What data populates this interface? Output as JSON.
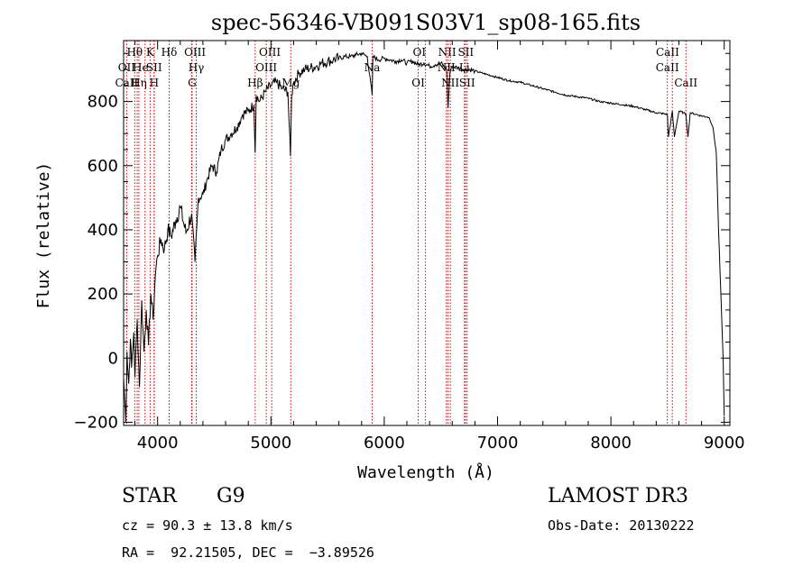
{
  "chart_data": {
    "type": "line",
    "title": "spec-56346-VB091S03V1_sp08-165.fits",
    "xlabel": "Wavelength (Å)",
    "ylabel": "Flux (relative)",
    "xlim": [
      3700,
      9050
    ],
    "ylim": [
      -210,
      990
    ],
    "xticks": [
      4000,
      5000,
      6000,
      7000,
      8000,
      9000
    ],
    "xtick_labels": [
      "4000",
      "5000",
      "6000",
      "7000",
      "8000",
      "9000"
    ],
    "yticks": [
      -200,
      0,
      200,
      400,
      600,
      800
    ],
    "ytick_labels": [
      "−200",
      "0",
      "200",
      "400",
      "600",
      "800"
    ],
    "series": [
      {
        "name": "flux",
        "x": [
          3700,
          3720,
          3730,
          3745,
          3760,
          3770,
          3790,
          3800,
          3820,
          3840,
          3860,
          3880,
          3900,
          3920,
          3940,
          3960,
          3980,
          4000,
          4030,
          4060,
          4090,
          4120,
          4160,
          4200,
          4250,
          4300,
          4330,
          4360,
          4400,
          4440,
          4480,
          4520,
          4560,
          4600,
          4650,
          4700,
          4750,
          4800,
          4850,
          4861,
          4870,
          4900,
          4950,
          5000,
          5050,
          5100,
          5150,
          5172,
          5183,
          5200,
          5250,
          5300,
          5350,
          5400,
          5450,
          5500,
          5550,
          5600,
          5650,
          5700,
          5750,
          5800,
          5850,
          5893,
          5900,
          5950,
          6000,
          6050,
          6100,
          6150,
          6200,
          6250,
          6300,
          6350,
          6400,
          6450,
          6500,
          6550,
          6563,
          6580,
          6600,
          6650,
          6700,
          6750,
          6800,
          6850,
          6900,
          6950,
          7000,
          7100,
          7200,
          7300,
          7400,
          7500,
          7600,
          7700,
          7800,
          7900,
          8000,
          8100,
          8200,
          8300,
          8400,
          8498,
          8508,
          8542,
          8560,
          8600,
          8640,
          8662,
          8680,
          8700,
          8750,
          8800,
          8850,
          8870,
          8900,
          8930,
          8950,
          8970,
          8990,
          9000
        ],
        "y": [
          -60,
          -200,
          20,
          -80,
          60,
          -30,
          80,
          -60,
          120,
          -90,
          180,
          20,
          150,
          40,
          200,
          120,
          260,
          320,
          370,
          340,
          400,
          380,
          430,
          470,
          390,
          450,
          300,
          500,
          510,
          560,
          600,
          580,
          650,
          680,
          700,
          720,
          760,
          770,
          790,
          640,
          820,
          800,
          830,
          850,
          860,
          840,
          830,
          630,
          820,
          860,
          890,
          900,
          905,
          910,
          920,
          925,
          930,
          935,
          940,
          940,
          945,
          950,
          940,
          820,
          940,
          930,
          935,
          930,
          925,
          930,
          920,
          925,
          915,
          920,
          910,
          915,
          920,
          900,
          780,
          890,
          910,
          905,
          900,
          900,
          895,
          890,
          885,
          880,
          875,
          865,
          860,
          850,
          840,
          830,
          820,
          815,
          810,
          800,
          795,
          790,
          785,
          775,
          765,
          760,
          690,
          770,
          690,
          770,
          765,
          760,
          690,
          765,
          760,
          755,
          752,
          748,
          720,
          640,
          400,
          200,
          0,
          -180
        ]
      }
    ],
    "lines": [
      {
        "name": "OII",
        "wavelength": 3727
      },
      {
        "name": "Hθ",
        "wavelength": 3798
      },
      {
        "name": "CaII",
        "wavelength": 3820
      },
      {
        "name": "Hη",
        "wavelength": 3835
      },
      {
        "name": "He",
        "wavelength": 3889
      },
      {
        "name": "K",
        "wavelength": 3934
      },
      {
        "name": "SII",
        "wavelength": 3969
      },
      {
        "name": "H",
        "wavelength": 3970
      },
      {
        "name": "Hδ",
        "wavelength": 4102
      },
      {
        "name": "OIII",
        "wavelength": 4300
      },
      {
        "name": "Hγ",
        "wavelength": 4341
      },
      {
        "name": "G",
        "wavelength": 4304
      },
      {
        "name": "Hβ",
        "wavelength": 4861
      },
      {
        "name": "OIII",
        "wavelength": 4959
      },
      {
        "name": "OIII",
        "wavelength": 5007
      },
      {
        "name": "Mg",
        "wavelength": 5175
      },
      {
        "name": "Na",
        "wavelength": 5893
      },
      {
        "name": "OI",
        "wavelength": 6300
      },
      {
        "name": "OI",
        "wavelength": 6364
      },
      {
        "name": "NII",
        "wavelength": 6548
      },
      {
        "name": "Hα",
        "wavelength": 6563
      },
      {
        "name": "NII",
        "wavelength": 6583
      },
      {
        "name": "Li",
        "wavelength": 6708
      },
      {
        "name": "SII",
        "wavelength": 6716
      },
      {
        "name": "SII",
        "wavelength": 6731
      },
      {
        "name": "CaII",
        "wavelength": 8498
      },
      {
        "name": "CaII",
        "wavelength": 8542
      },
      {
        "name": "CaII",
        "wavelength": 8662
      }
    ],
    "line_labels": [
      {
        "text": "Hθ",
        "wavelength": 3798,
        "row": 0
      },
      {
        "text": "K",
        "wavelength": 3934,
        "row": 0
      },
      {
        "text": "Hδ",
        "wavelength": 4102,
        "row": 0
      },
      {
        "text": "OIII",
        "wavelength": 4330,
        "row": 0
      },
      {
        "text": "OIII",
        "wavelength": 4990,
        "row": 0
      },
      {
        "text": "OI",
        "wavelength": 6310,
        "row": 0
      },
      {
        "text": "NII",
        "wavelength": 6555,
        "row": 0
      },
      {
        "text": "SII",
        "wavelength": 6720,
        "row": 0
      },
      {
        "text": "CaII",
        "wavelength": 8500,
        "row": 0
      },
      {
        "text": "OII",
        "wavelength": 3727,
        "row": 1
      },
      {
        "text": "He",
        "wavelength": 3850,
        "row": 1
      },
      {
        "text": "SII",
        "wavelength": 3969,
        "row": 1
      },
      {
        "text": "Hγ",
        "wavelength": 4341,
        "row": 1
      },
      {
        "text": "OIII",
        "wavelength": 4959,
        "row": 1
      },
      {
        "text": "Na",
        "wavelength": 5893,
        "row": 1
      },
      {
        "text": "NII",
        "wavelength": 6548,
        "row": 1
      },
      {
        "text": "Li",
        "wavelength": 6708,
        "row": 1
      },
      {
        "text": "CaII",
        "wavelength": 8498,
        "row": 1
      },
      {
        "text": "CaII",
        "wavelength": 3727,
        "row": 2
      },
      {
        "text": "Hη",
        "wavelength": 3835,
        "row": 2
      },
      {
        "text": "H",
        "wavelength": 3970,
        "row": 2
      },
      {
        "text": "G",
        "wavelength": 4304,
        "row": 2
      },
      {
        "text": "Hβ",
        "wavelength": 4861,
        "row": 2
      },
      {
        "text": "Mg",
        "wavelength": 5175,
        "row": 2
      },
      {
        "text": "OI",
        "wavelength": 6300,
        "row": 2
      },
      {
        "text": "NII",
        "wavelength": 6583,
        "row": 2
      },
      {
        "text": "SII",
        "wavelength": 6731,
        "row": 2
      },
      {
        "text": "CaII",
        "wavelength": 8662,
        "row": 2
      }
    ],
    "colors": {
      "spectrum": "#000000",
      "lines": "#d00000",
      "axes": "#000000"
    }
  },
  "info": {
    "class": "STAR",
    "subclass": "G9",
    "cz": "cz = 90.3 ± 13.8 km/s",
    "coords": "RA =  92.21505, DEC =  −3.89526",
    "survey": "LAMOST DR3",
    "obs_date": "Obs-Date: 20130222"
  }
}
